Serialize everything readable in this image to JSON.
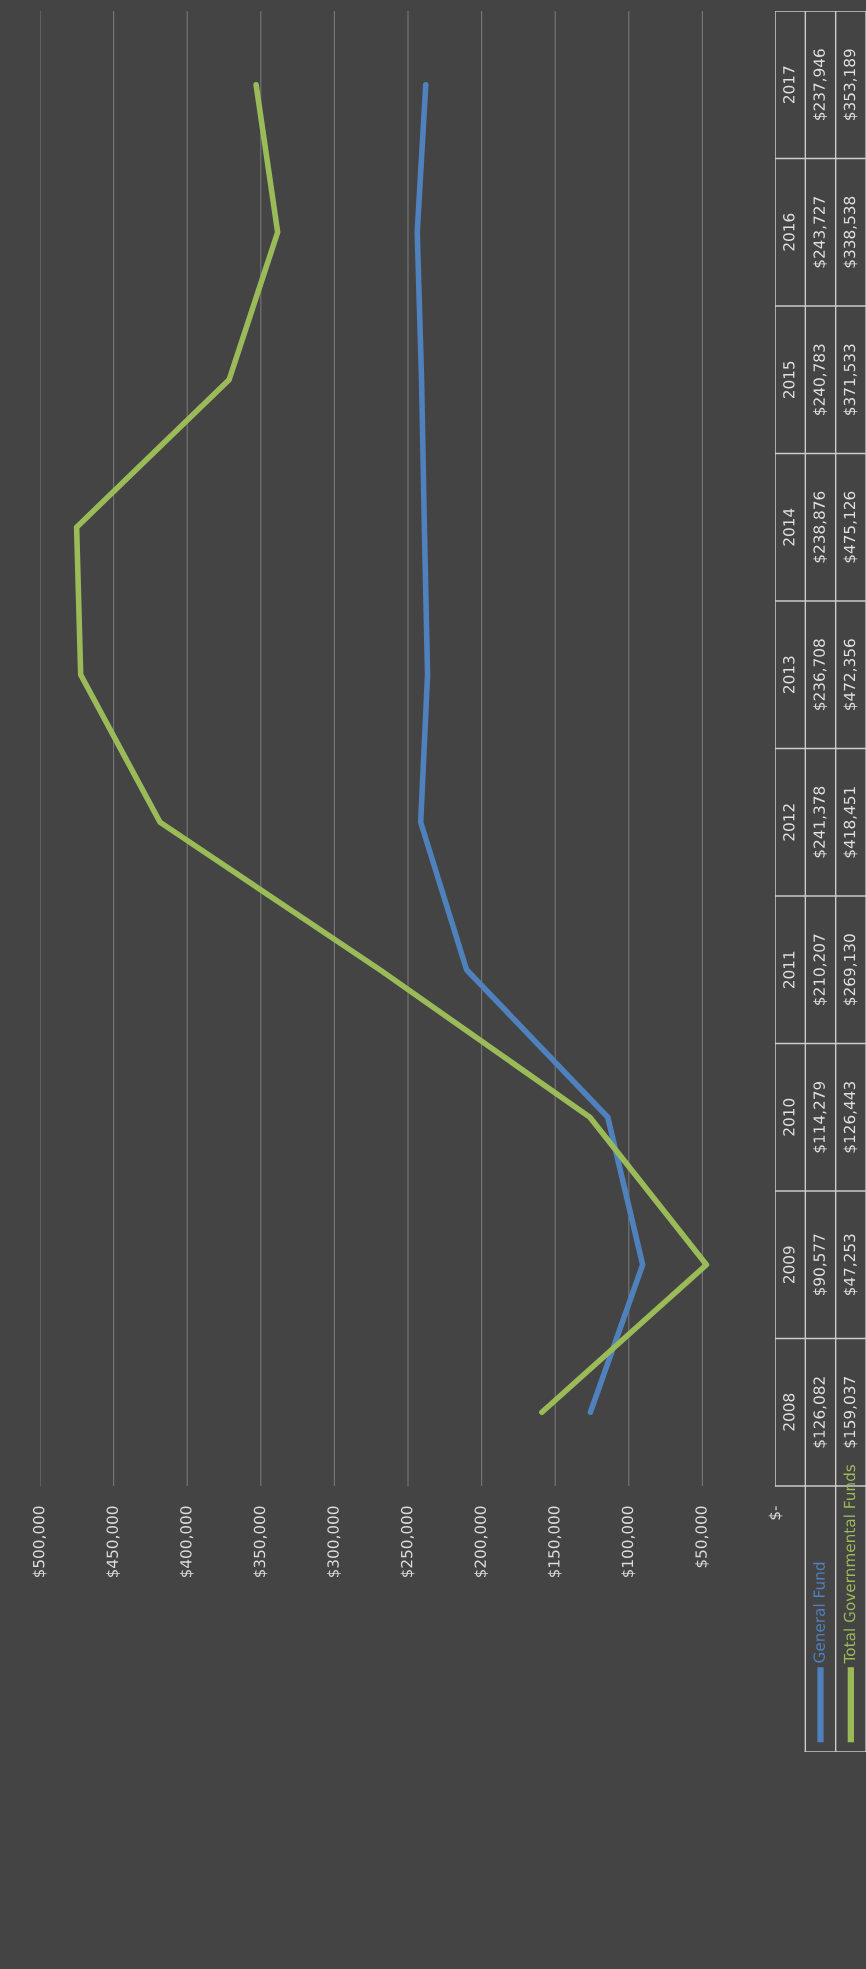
{
  "chart_data": {
    "type": "line",
    "orientation": "horizontal",
    "categories": [
      "2017",
      "2016",
      "2015",
      "2014",
      "2013",
      "2012",
      "2011",
      "2010",
      "2009",
      "2008"
    ],
    "series": [
      {
        "name": "General Fund",
        "color": "#4f81bd",
        "values": [
          237946,
          243727,
          240783,
          238876,
          236708,
          241378,
          210207,
          114279,
          90577,
          126082
        ],
        "value_labels": [
          "$237,946",
          "$243,727",
          "$240,783",
          "$238,876",
          "$236,708",
          "$241,378",
          "$210,207",
          "$114,279",
          "$90,577",
          "$126,082"
        ]
      },
      {
        "name": "Total Governmental Funds",
        "color": "#9bbb59",
        "values": [
          353189,
          338538,
          371533,
          475126,
          472356,
          418451,
          269130,
          126443,
          47253,
          159037
        ],
        "value_labels": [
          "$353,189",
          "$338,538",
          "$371,533",
          "$475,126",
          "$472,356",
          "$418,451",
          "$269,130",
          "$126,443",
          "$47,253",
          "$159,037"
        ]
      }
    ],
    "xlim": [
      500000,
      0
    ],
    "xticks": [
      {
        "value": 500000,
        "label": "$500,000"
      },
      {
        "value": 450000,
        "label": "$450,000"
      },
      {
        "value": 400000,
        "label": "$400,000"
      },
      {
        "value": 350000,
        "label": "$350,000"
      },
      {
        "value": 300000,
        "label": "$300,000"
      },
      {
        "value": 250000,
        "label": "$250,000"
      },
      {
        "value": 200000,
        "label": "$200,000"
      },
      {
        "value": 150000,
        "label": "$150,000"
      },
      {
        "value": 100000,
        "label": "$100,000"
      },
      {
        "value": 50000,
        "label": "$50,000"
      },
      {
        "value": 0,
        "label": "$-"
      }
    ],
    "grid": "x",
    "legend": "bottom",
    "marker": "none",
    "line_style": "solid"
  }
}
